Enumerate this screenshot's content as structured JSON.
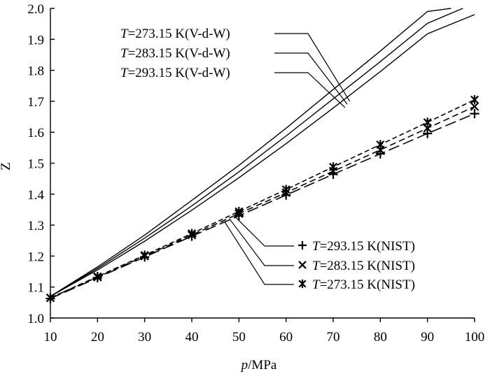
{
  "chart_data": {
    "type": "line",
    "xlabel_italic": "p",
    "xlabel_unit": "/MPa",
    "ylabel": "Z",
    "xlim": [
      10,
      100
    ],
    "ylim": [
      1.0,
      2.0
    ],
    "x_ticks": [
      10,
      20,
      30,
      40,
      50,
      60,
      70,
      80,
      90,
      100
    ],
    "x_tick_labels": [
      "10",
      "20",
      "30",
      "40",
      "50",
      "60",
      "70",
      "80",
      "90",
      "100"
    ],
    "y_ticks": [
      1.0,
      1.1,
      1.2,
      1.3,
      1.4,
      1.5,
      1.6,
      1.7,
      1.8,
      1.9,
      2.0
    ],
    "y_tick_labels": [
      "1.0",
      "1.1",
      "1.2",
      "1.3",
      "1.4",
      "1.5",
      "1.6",
      "1.7",
      "1.8",
      "1.9",
      "2.0"
    ],
    "series": [
      {
        "name": "T=273.15 K(V-d-W)",
        "label_var": "T",
        "label_rest": "=273.15 K(V-d-W)",
        "model": "vdw",
        "x": [
          10,
          20,
          30,
          40,
          50,
          60,
          70,
          80,
          90,
          95
        ],
        "y": [
          1.07,
          1.165,
          1.268,
          1.38,
          1.493,
          1.613,
          1.738,
          1.862,
          1.99,
          2.0
        ]
      },
      {
        "name": "T=283.15 K(V-d-W)",
        "label_var": "T",
        "label_rest": "=283.15 K(V-d-W)",
        "model": "vdw",
        "x": [
          10,
          20,
          30,
          40,
          50,
          60,
          70,
          80,
          90,
          97.5
        ],
        "y": [
          1.07,
          1.16,
          1.258,
          1.362,
          1.472,
          1.588,
          1.708,
          1.828,
          1.952,
          2.0
        ]
      },
      {
        "name": "T=293.15 K(V-d-W)",
        "label_var": "T",
        "label_rest": "=293.15 K(V-d-W)",
        "model": "vdw",
        "x": [
          10,
          20,
          30,
          40,
          50,
          60,
          70,
          80,
          90,
          100
        ],
        "y": [
          1.07,
          1.155,
          1.248,
          1.348,
          1.453,
          1.563,
          1.678,
          1.796,
          1.918,
          1.98
        ]
      },
      {
        "name": "T=293.15 K(NIST)",
        "label_var": "T",
        "label_rest": "=293.15 K(NIST)",
        "model": "nist",
        "marker": "plus",
        "x": [
          10,
          20,
          30,
          40,
          50,
          60,
          70,
          80,
          90,
          100
        ],
        "y": [
          1.063,
          1.13,
          1.197,
          1.264,
          1.33,
          1.397,
          1.464,
          1.53,
          1.596,
          1.66
        ]
      },
      {
        "name": "T=283.15 K(NIST)",
        "label_var": "T",
        "label_rest": "=283.15 K(NIST)",
        "model": "nist",
        "marker": "cross",
        "x": [
          10,
          20,
          30,
          40,
          50,
          60,
          70,
          80,
          90,
          100
        ],
        "y": [
          1.065,
          1.132,
          1.2,
          1.268,
          1.337,
          1.405,
          1.474,
          1.543,
          1.613,
          1.683
        ]
      },
      {
        "name": "T=273.15 K(NIST)",
        "label_var": "T",
        "label_rest": "=273.15 K(NIST)",
        "model": "nist",
        "marker": "asterisk",
        "x": [
          10,
          20,
          30,
          40,
          50,
          60,
          70,
          80,
          90,
          100
        ],
        "y": [
          1.065,
          1.134,
          1.203,
          1.273,
          1.344,
          1.415,
          1.488,
          1.56,
          1.632,
          1.705
        ]
      }
    ]
  }
}
